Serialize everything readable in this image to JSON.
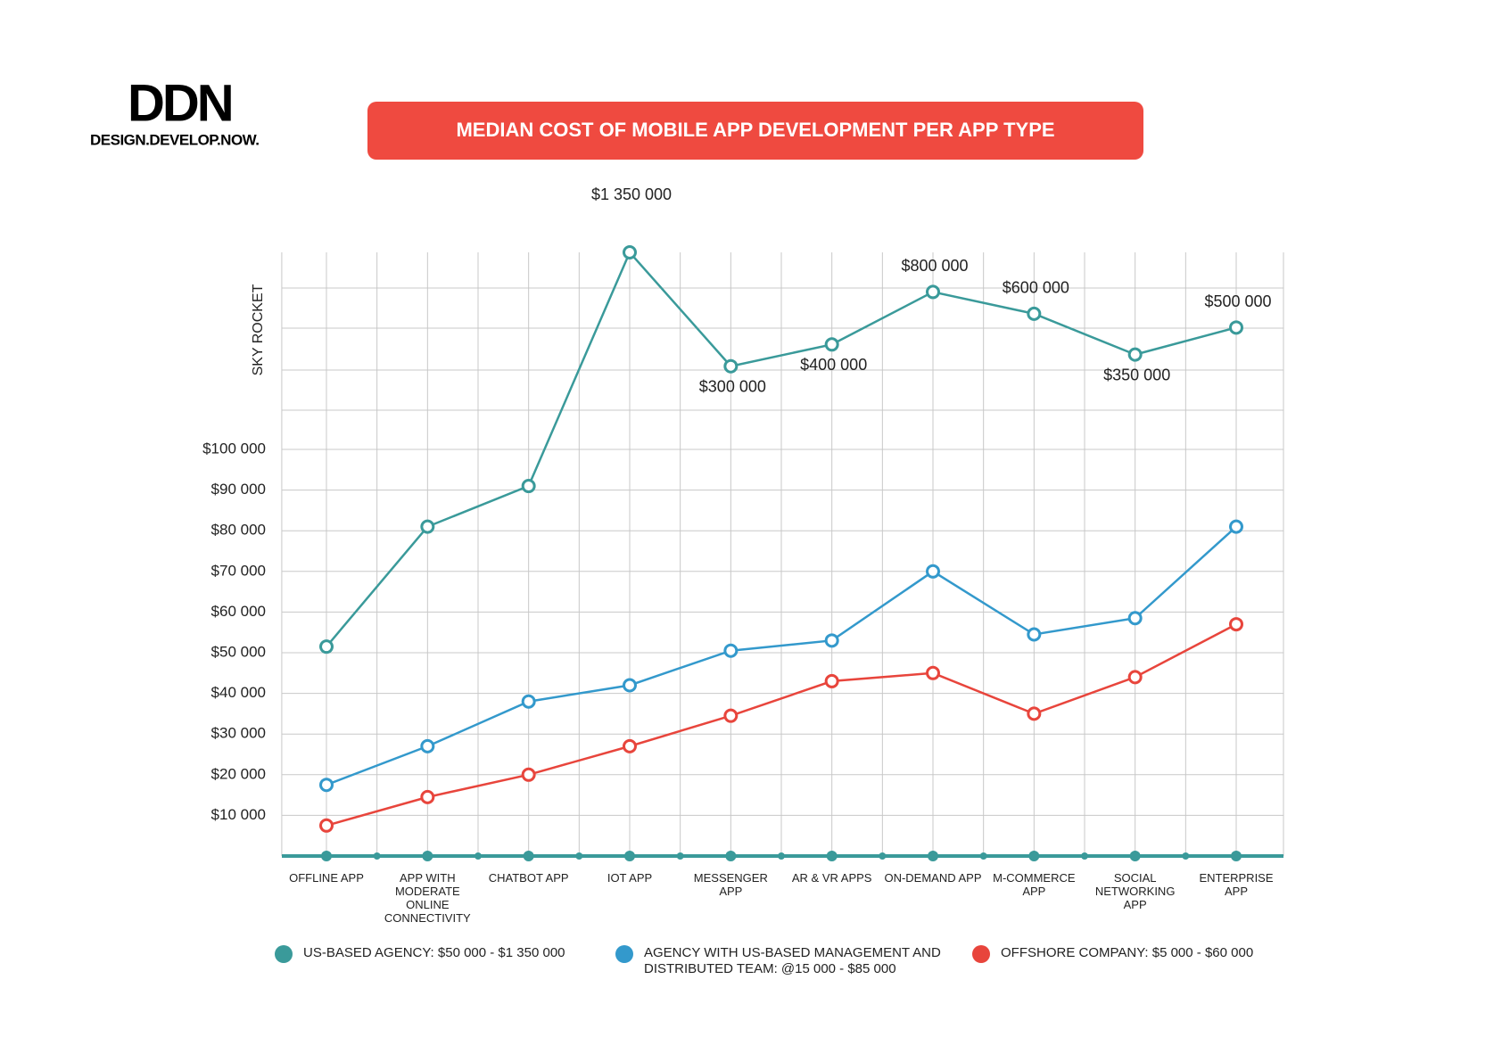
{
  "logo": {
    "mark": "DDN",
    "tagline": "DESIGN.DEVELOP.NOW."
  },
  "chart_data": {
    "type": "line",
    "title": "MEDIAN COST OF MOBILE APP DEVELOPMENT PER APP TYPE",
    "ylabel": "SKY ROCKET",
    "categories": [
      "OFFLINE APP",
      "APP WITH MODERATE ONLINE CONNECTIVITY",
      "CHATBOT APP",
      "IOT APP",
      "MESSENGER APP",
      "AR & VR APPS",
      "ON-DEMAND APP",
      "M-COMMERCE APP",
      "SOCIAL NETWORKING APP",
      "ENTERPRISE APP"
    ],
    "ylim": [
      0,
      1350000
    ],
    "yticks": [
      {
        "value": 10000,
        "label": "$10 000"
      },
      {
        "value": 20000,
        "label": "$20 000"
      },
      {
        "value": 30000,
        "label": "$30 000"
      },
      {
        "value": 40000,
        "label": "$40 000"
      },
      {
        "value": 50000,
        "label": "$50 000"
      },
      {
        "value": 60000,
        "label": "$60 000"
      },
      {
        "value": 70000,
        "label": "$70 000"
      },
      {
        "value": 80000,
        "label": "$80 000"
      },
      {
        "value": 90000,
        "label": "$90 000"
      },
      {
        "value": 100000,
        "label": "$100 000"
      }
    ],
    "grid": true,
    "series": [
      {
        "name": "US-BASED AGENCY: $50 000 - $1 350 000",
        "color": "#3a9a9a",
        "values": [
          51500,
          81000,
          91000,
          1350000,
          300000,
          400000,
          800000,
          600000,
          350000,
          500000
        ],
        "value_labels": [
          null,
          null,
          null,
          "$1 350 000",
          "$300 000",
          "$400 000",
          "$800 000",
          "$600 000",
          "$350 000",
          "$500 000"
        ]
      },
      {
        "name": "AGENCY WITH US-BASED MANAGEMENT AND DISTRIBUTED TEAM: @15 000 - $85 000",
        "color": "#3399cc",
        "values": [
          17500,
          27000,
          38000,
          42000,
          50500,
          53000,
          70000,
          54500,
          58500,
          81000
        ]
      },
      {
        "name": "OFFSHORE COMPANY: $5 000 - $60 000",
        "color": "#e8453c",
        "values": [
          7500,
          14500,
          20000,
          27000,
          34500,
          43000,
          45000,
          35000,
          44000,
          57000
        ]
      }
    ]
  }
}
